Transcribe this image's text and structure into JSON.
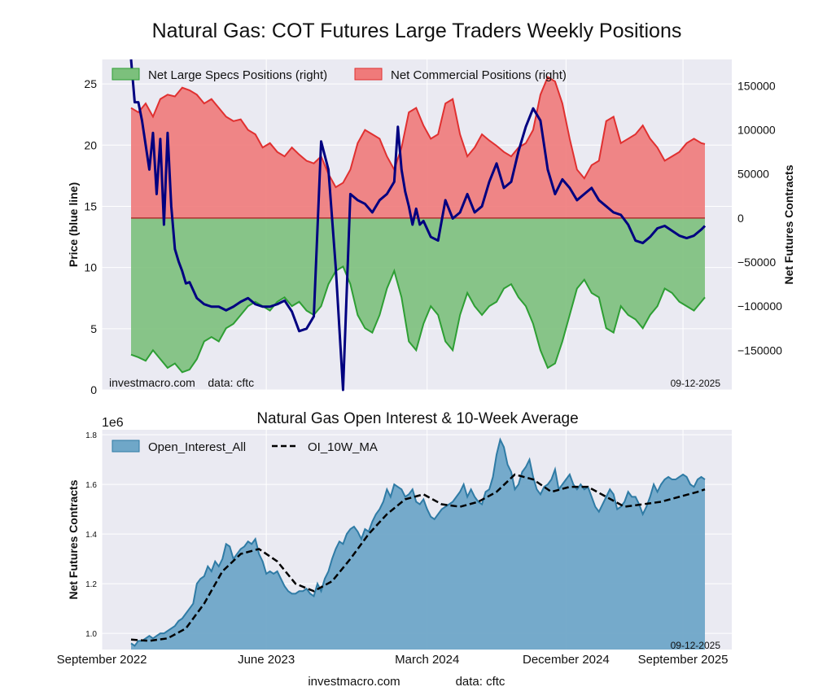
{
  "figure": {
    "footer_site": "investmacro.com",
    "footer_data": "data: cftc"
  },
  "chart_data": [
    {
      "type": "area",
      "title": "Natural Gas: COT Futures Large Traders Weekly Positions",
      "ylabel_left": "Price (blue line)",
      "ylabel_right": "Net Futures Contracts",
      "ylim_left": [
        0,
        27
      ],
      "ylim_right": [
        -195000,
        180000
      ],
      "left_ticks": [
        0,
        5,
        10,
        15,
        20,
        25
      ],
      "right_ticks": [
        150000,
        100000,
        50000,
        0,
        -50000,
        -100000,
        -150000
      ],
      "right_tick_labels": [
        "150000",
        "100000",
        "50000",
        "0",
        "−50000",
        "−100000",
        "−150000"
      ],
      "grid": true,
      "legend_position": "top-left",
      "watermark_left": "investmacro.com    data: cftc",
      "watermark_right": "09-12-2025",
      "x_range": [
        0,
        157
      ],
      "series": [
        {
          "name": "Net Large Specs Positions (right)",
          "color": "#2e9e34",
          "fill": "#7cc07c",
          "x": [
            0,
            2,
            4,
            6,
            8,
            10,
            12,
            14,
            16,
            18,
            20,
            22,
            24,
            26,
            28,
            30,
            32,
            34,
            36,
            38,
            40,
            42,
            44,
            46,
            48,
            50,
            52,
            54,
            56,
            58,
            60,
            62,
            64,
            66,
            68,
            70,
            72,
            74,
            76,
            78,
            80,
            82,
            84,
            86,
            88,
            90,
            92,
            94,
            96,
            98,
            100,
            102,
            104,
            106,
            108,
            110,
            112,
            114,
            116,
            118,
            120,
            122,
            124,
            126,
            128,
            130,
            132,
            134,
            136,
            138,
            140,
            142,
            144,
            146,
            148,
            150,
            152,
            154,
            156,
            157
          ],
          "values": [
            -155000,
            -158000,
            -162000,
            -150000,
            -160000,
            -170000,
            -165000,
            -175000,
            -172000,
            -160000,
            -140000,
            -135000,
            -140000,
            -125000,
            -120000,
            -110000,
            -100000,
            -95000,
            -100000,
            -105000,
            -95000,
            -90000,
            -100000,
            -95000,
            -105000,
            -110000,
            -100000,
            -75000,
            -60000,
            -55000,
            -75000,
            -110000,
            -125000,
            -130000,
            -110000,
            -80000,
            -60000,
            -90000,
            -140000,
            -150000,
            -120000,
            -100000,
            -110000,
            -140000,
            -150000,
            -110000,
            -85000,
            -100000,
            -110000,
            -100000,
            -95000,
            -80000,
            -75000,
            -90000,
            -100000,
            -120000,
            -150000,
            -170000,
            -165000,
            -140000,
            -110000,
            -80000,
            -70000,
            -85000,
            -90000,
            -125000,
            -130000,
            -100000,
            -110000,
            -115000,
            -125000,
            -110000,
            -100000,
            -80000,
            -85000,
            -95000,
            -100000,
            -105000,
            -95000,
            -90000
          ]
        },
        {
          "name": "Net Commercial Positions (right)",
          "color": "#e03030",
          "fill": "#f07a7a",
          "x": [
            0,
            2,
            4,
            6,
            8,
            10,
            12,
            14,
            16,
            18,
            20,
            22,
            24,
            26,
            28,
            30,
            32,
            34,
            36,
            38,
            40,
            42,
            44,
            46,
            48,
            50,
            52,
            54,
            56,
            58,
            60,
            62,
            64,
            66,
            68,
            70,
            72,
            74,
            76,
            78,
            80,
            82,
            84,
            86,
            88,
            90,
            92,
            94,
            96,
            98,
            100,
            102,
            104,
            106,
            108,
            110,
            112,
            114,
            116,
            118,
            120,
            122,
            124,
            126,
            128,
            130,
            132,
            134,
            136,
            138,
            140,
            142,
            144,
            146,
            148,
            150,
            152,
            154,
            156,
            157
          ],
          "values": [
            125000,
            120000,
            130000,
            115000,
            135000,
            140000,
            138000,
            148000,
            145000,
            140000,
            130000,
            135000,
            125000,
            115000,
            110000,
            112000,
            100000,
            95000,
            80000,
            85000,
            75000,
            70000,
            80000,
            72000,
            65000,
            62000,
            70000,
            50000,
            35000,
            40000,
            55000,
            85000,
            100000,
            95000,
            90000,
            70000,
            55000,
            80000,
            120000,
            125000,
            105000,
            90000,
            95000,
            130000,
            135000,
            95000,
            70000,
            80000,
            95000,
            88000,
            82000,
            75000,
            70000,
            80000,
            85000,
            100000,
            140000,
            160000,
            155000,
            130000,
            90000,
            55000,
            45000,
            60000,
            65000,
            110000,
            115000,
            85000,
            90000,
            95000,
            105000,
            90000,
            80000,
            65000,
            70000,
            75000,
            85000,
            90000,
            85000,
            84000
          ]
        },
        {
          "name": "Price",
          "axis": "left",
          "color": "#000080",
          "x": [
            0,
            1,
            2,
            3,
            4,
            5,
            6,
            7,
            8,
            9,
            10,
            11,
            12,
            13,
            14,
            15,
            16,
            18,
            20,
            22,
            24,
            26,
            28,
            30,
            32,
            34,
            36,
            38,
            40,
            42,
            44,
            46,
            48,
            50,
            52,
            54,
            56,
            58,
            60,
            62,
            64,
            66,
            68,
            70,
            72,
            73,
            74,
            75,
            76,
            77,
            78,
            79,
            80,
            82,
            84,
            86,
            88,
            90,
            92,
            94,
            96,
            98,
            100,
            102,
            104,
            106,
            108,
            110,
            112,
            114,
            116,
            118,
            120,
            122,
            124,
            126,
            128,
            130,
            132,
            134,
            136,
            138,
            140,
            142,
            144,
            146,
            148,
            150,
            152,
            154,
            156,
            157
          ],
          "values": [
            27,
            23.5,
            23.5,
            22,
            20,
            18,
            21,
            16,
            20.5,
            13.5,
            21,
            15,
            11.5,
            10.5,
            9.7,
            8.7,
            8.8,
            7.5,
            7,
            6.8,
            6.8,
            6.5,
            6.8,
            7.2,
            7.5,
            7,
            6.8,
            6.8,
            7,
            7.3,
            6.4,
            4.8,
            5,
            6,
            20.3,
            18,
            10,
            0,
            16,
            15.5,
            15.2,
            14.5,
            15.5,
            16,
            17,
            21.5,
            18,
            16.2,
            15,
            13.5,
            14.8,
            13.5,
            13.8,
            12.5,
            12.2,
            15.5,
            14,
            14.5,
            16,
            14.5,
            15,
            17,
            18.5,
            16.5,
            17,
            19.5,
            21.5,
            23,
            22,
            18,
            16,
            17.2,
            16.5,
            15.5,
            16,
            16.5,
            15.5,
            15,
            14.5,
            14.3,
            13.5,
            12.2,
            12,
            12.5,
            13.2,
            13.4,
            13,
            12.6,
            12.4,
            12.6,
            13.1,
            13.4
          ]
        }
      ]
    },
    {
      "type": "area",
      "title": "Natural Gas Open Interest & 10-Week Average",
      "ylabel": "Net Futures Contracts",
      "offset_label": "1e6",
      "ylim": [
        0.935,
        1.82
      ],
      "y_ticks": [
        1.0,
        1.2,
        1.4,
        1.6,
        1.8
      ],
      "y_tick_labels": [
        "1.0",
        "1.2",
        "1.4",
        "1.6",
        "1.8"
      ],
      "grid": true,
      "legend_position": "top-left",
      "watermark_right": "09-12-2025",
      "x_range": [
        0,
        157
      ],
      "x_ticks": [
        {
          "label": "September 2022",
          "x": -8
        },
        {
          "label": "June 2023",
          "x": 37
        },
        {
          "label": "March 2024",
          "x": 81
        },
        {
          "label": "December 2024",
          "x": 119
        },
        {
          "label": "September 2025",
          "x": 151
        }
      ],
      "series": [
        {
          "name": "Open_Interest_All",
          "color": "#2f7ba5",
          "fill": "#6fa7c8",
          "x": [
            0,
            1,
            2,
            3,
            4,
            5,
            6,
            7,
            8,
            9,
            10,
            11,
            12,
            13,
            14,
            15,
            16,
            17,
            18,
            19,
            20,
            21,
            22,
            23,
            24,
            25,
            26,
            27,
            28,
            29,
            30,
            31,
            32,
            33,
            34,
            35,
            36,
            37,
            38,
            39,
            40,
            41,
            42,
            43,
            44,
            45,
            46,
            47,
            48,
            49,
            50,
            51,
            52,
            53,
            54,
            55,
            56,
            57,
            58,
            59,
            60,
            61,
            62,
            63,
            64,
            65,
            66,
            67,
            68,
            69,
            70,
            71,
            72,
            73,
            74,
            75,
            76,
            77,
            78,
            79,
            80,
            81,
            82,
            83,
            84,
            85,
            86,
            87,
            88,
            89,
            90,
            91,
            92,
            93,
            94,
            95,
            96,
            97,
            98,
            99,
            100,
            101,
            102,
            103,
            104,
            105,
            106,
            107,
            108,
            109,
            110,
            111,
            112,
            113,
            114,
            115,
            116,
            117,
            118,
            119,
            120,
            121,
            122,
            123,
            124,
            125,
            126,
            127,
            128,
            129,
            130,
            131,
            132,
            133,
            134,
            135,
            136,
            137,
            138,
            139,
            140,
            141,
            142,
            143,
            144,
            145,
            146,
            147,
            148,
            149,
            150,
            151,
            152,
            153,
            154,
            155,
            156,
            157
          ],
          "values": [
            0.96,
            0.95,
            0.97,
            0.97,
            0.98,
            0.99,
            0.98,
            0.99,
            1.0,
            1.0,
            1.01,
            1.02,
            1.03,
            1.05,
            1.06,
            1.08,
            1.1,
            1.12,
            1.2,
            1.22,
            1.23,
            1.27,
            1.25,
            1.29,
            1.27,
            1.3,
            1.36,
            1.35,
            1.3,
            1.32,
            1.34,
            1.35,
            1.37,
            1.36,
            1.38,
            1.32,
            1.29,
            1.24,
            1.25,
            1.24,
            1.25,
            1.22,
            1.19,
            1.17,
            1.16,
            1.16,
            1.17,
            1.17,
            1.18,
            1.16,
            1.15,
            1.2,
            1.17,
            1.22,
            1.25,
            1.3,
            1.34,
            1.37,
            1.36,
            1.4,
            1.42,
            1.43,
            1.41,
            1.38,
            1.42,
            1.41,
            1.45,
            1.48,
            1.5,
            1.53,
            1.58,
            1.55,
            1.6,
            1.59,
            1.58,
            1.55,
            1.56,
            1.58,
            1.53,
            1.52,
            1.54,
            1.5,
            1.47,
            1.46,
            1.48,
            1.5,
            1.51,
            1.52,
            1.53,
            1.55,
            1.57,
            1.6,
            1.55,
            1.58,
            1.55,
            1.53,
            1.52,
            1.57,
            1.58,
            1.63,
            1.72,
            1.78,
            1.75,
            1.68,
            1.65,
            1.58,
            1.6,
            1.65,
            1.67,
            1.7,
            1.63,
            1.58,
            1.56,
            1.59,
            1.6,
            1.62,
            1.66,
            1.58,
            1.6,
            1.62,
            1.64,
            1.6,
            1.58,
            1.6,
            1.58,
            1.59,
            1.55,
            1.51,
            1.49,
            1.52,
            1.55,
            1.58,
            1.56,
            1.5,
            1.51,
            1.53,
            1.57,
            1.55,
            1.55,
            1.52,
            1.48,
            1.51,
            1.55,
            1.6,
            1.57,
            1.6,
            1.62,
            1.63,
            1.62,
            1.62,
            1.63,
            1.64,
            1.63,
            1.6,
            1.59,
            1.62,
            1.63,
            1.62
          ]
        },
        {
          "name": "OI_10W_MA",
          "color": "#000000",
          "style": "dashed",
          "x": [
            0,
            5,
            10,
            15,
            20,
            25,
            30,
            35,
            40,
            45,
            50,
            55,
            60,
            65,
            70,
            75,
            80,
            85,
            90,
            95,
            100,
            105,
            110,
            115,
            120,
            125,
            130,
            135,
            140,
            145,
            150,
            155,
            157
          ],
          "values": [
            0.975,
            0.97,
            0.98,
            1.02,
            1.12,
            1.25,
            1.32,
            1.34,
            1.29,
            1.2,
            1.17,
            1.21,
            1.3,
            1.4,
            1.48,
            1.54,
            1.56,
            1.52,
            1.51,
            1.53,
            1.57,
            1.64,
            1.62,
            1.57,
            1.59,
            1.59,
            1.55,
            1.51,
            1.52,
            1.53,
            1.55,
            1.57,
            1.58
          ]
        }
      ]
    }
  ]
}
